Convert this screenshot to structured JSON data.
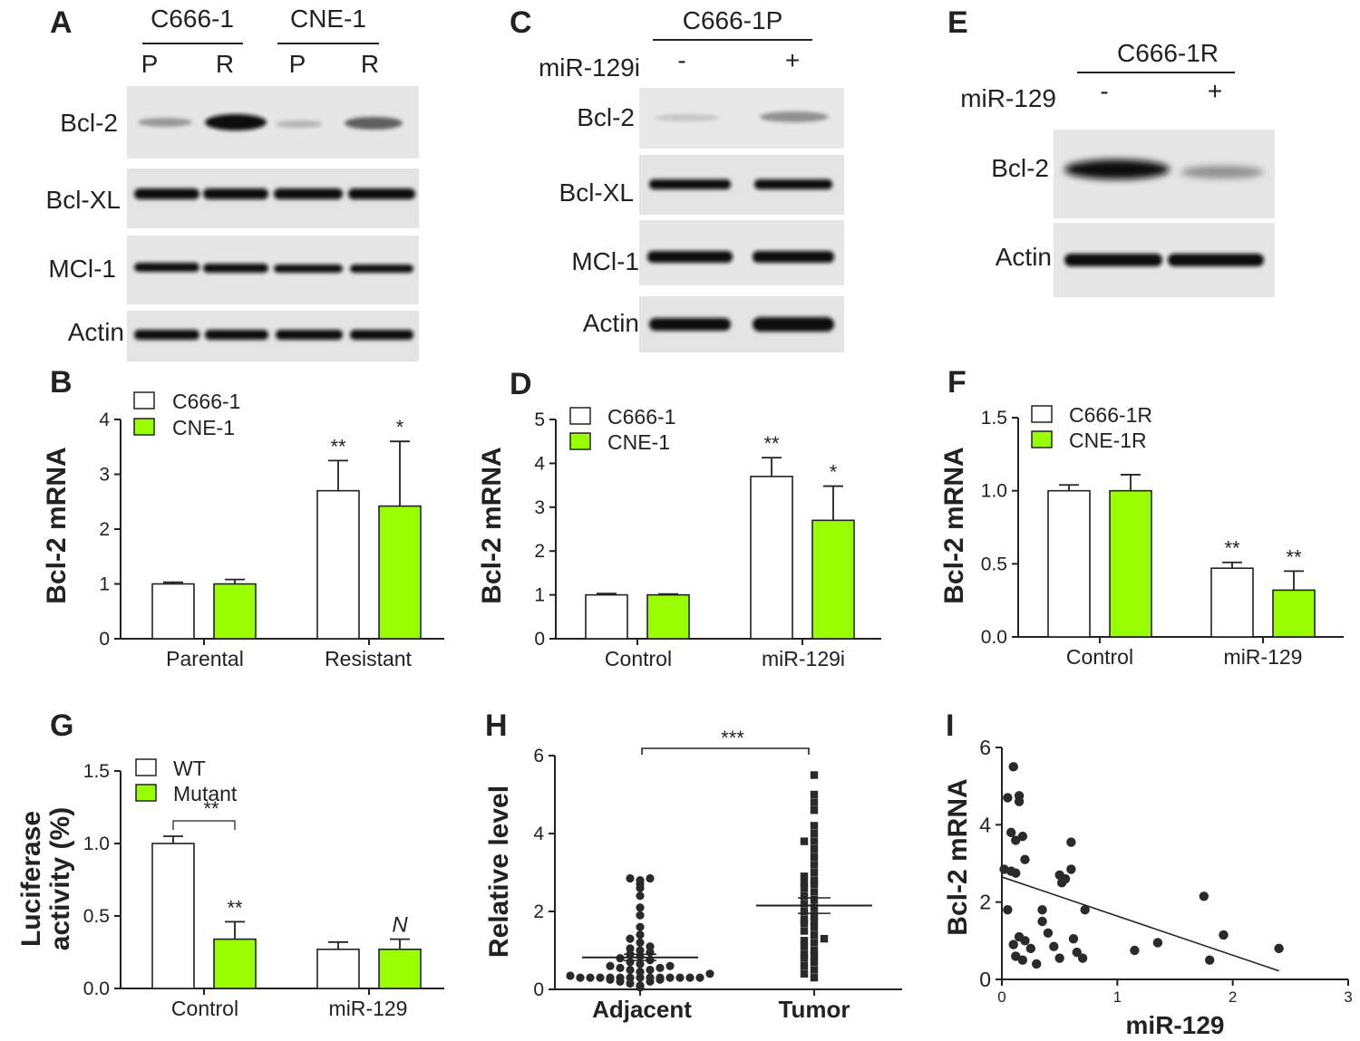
{
  "panels": {
    "A": {
      "letter": "A",
      "groups": [
        {
          "label": "C666-1",
          "lanes": [
            "P",
            "R"
          ]
        },
        {
          "label": "CNE-1",
          "lanes": [
            "P",
            "R"
          ]
        }
      ],
      "rows": [
        "Bcl-2",
        "Bcl-XL",
        "MCl-1",
        "Actin"
      ]
    },
    "C": {
      "letter": "C",
      "group": "C666-1P",
      "treatment": "miR-129i",
      "lanes": [
        "-",
        "+"
      ],
      "rows": [
        "Bcl-2",
        "Bcl-XL",
        "MCl-1",
        "Actin"
      ]
    },
    "E": {
      "letter": "E",
      "group": "C666-1R",
      "treatment": "miR-129",
      "lanes": [
        "-",
        "+"
      ],
      "rows": [
        "Bcl-2",
        "Actin"
      ]
    },
    "B": {
      "letter": "B"
    },
    "D": {
      "letter": "D"
    },
    "F": {
      "letter": "F"
    },
    "G": {
      "letter": "G"
    },
    "H": {
      "letter": "H"
    },
    "I": {
      "letter": "I"
    }
  },
  "colors": {
    "white_bar": "#ffffff",
    "green_bar": "#99ff00",
    "axis": "#222222",
    "dot": "#2a2a2a"
  },
  "chart_data": [
    {
      "id": "B",
      "type": "bar",
      "ylabel": "Bcl-2 mRNA",
      "ylim": [
        0,
        4
      ],
      "yticks": [
        "0",
        "1",
        "2",
        "3",
        "4"
      ],
      "categories": [
        "Parental",
        "Resistant"
      ],
      "series": [
        {
          "name": "C666-1",
          "color": "#ffffff",
          "values": [
            1.0,
            2.7
          ],
          "errors": [
            0.03,
            0.55
          ],
          "stars": [
            "",
            "**"
          ]
        },
        {
          "name": "CNE-1",
          "color": "#99ff00",
          "values": [
            1.0,
            2.42
          ],
          "errors": [
            0.08,
            1.18
          ],
          "stars": [
            "",
            "*"
          ]
        }
      ]
    },
    {
      "id": "D",
      "type": "bar",
      "ylabel": "Bcl-2 mRNA",
      "ylim": [
        0,
        5
      ],
      "yticks": [
        "0",
        "1",
        "2",
        "3",
        "4",
        "5"
      ],
      "categories": [
        "Control",
        "miR-129i"
      ],
      "series": [
        {
          "name": "C666-1",
          "color": "#ffffff",
          "values": [
            1.0,
            3.7
          ],
          "errors": [
            0.03,
            0.43
          ],
          "stars": [
            "",
            "**"
          ]
        },
        {
          "name": "CNE-1",
          "color": "#99ff00",
          "values": [
            1.0,
            2.7
          ],
          "errors": [
            0.02,
            0.78
          ],
          "stars": [
            "",
            "*"
          ]
        }
      ]
    },
    {
      "id": "F",
      "type": "bar",
      "ylabel": "Bcl-2 mRNA",
      "ylim": [
        0,
        1.5
      ],
      "yticks": [
        "0.0",
        "0.5",
        "1.0",
        "1.5"
      ],
      "categories": [
        "Control",
        "miR-129"
      ],
      "series": [
        {
          "name": "C666-1R",
          "color": "#ffffff",
          "values": [
            1.0,
            0.47
          ],
          "errors": [
            0.04,
            0.04
          ],
          "stars": [
            "",
            "**"
          ]
        },
        {
          "name": "CNE-1R",
          "color": "#99ff00",
          "values": [
            1.0,
            0.32
          ],
          "errors": [
            0.11,
            0.13
          ],
          "stars": [
            "",
            "**"
          ]
        }
      ]
    },
    {
      "id": "G",
      "type": "bar",
      "ylabel": [
        "Luciferase",
        "activity (%)"
      ],
      "ylim": [
        0,
        1.5
      ],
      "yticks": [
        "0.0",
        "0.5",
        "1.0",
        "1.5"
      ],
      "categories": [
        "Control",
        "miR-129"
      ],
      "series": [
        {
          "name": "WT",
          "color": "#ffffff",
          "values": [
            1.0,
            0.27
          ],
          "errors": [
            0.05,
            0.05
          ],
          "stars": [
            "",
            ""
          ]
        },
        {
          "name": "Mutant",
          "color": "#99ff00",
          "values": [
            0.34,
            0.27
          ],
          "errors": [
            0.12,
            0.07
          ],
          "stars": [
            "**",
            "N"
          ]
        }
      ],
      "bracket": {
        "label": "**",
        "from": [
          0,
          0
        ],
        "to": [
          1,
          0
        ]
      }
    },
    {
      "id": "H",
      "type": "scatter",
      "ylabel": "Relative level",
      "ylim": [
        0,
        6
      ],
      "yticks": [
        "0",
        "2",
        "4",
        "6"
      ],
      "categories": [
        "Adjacent",
        "Tumor"
      ],
      "means": [
        0.82,
        2.15
      ],
      "sem": [
        0.08,
        0.2
      ],
      "bracket": {
        "label": "***"
      },
      "points": [
        [
          0.05,
          0.1,
          0.15,
          0.2,
          0.2,
          0.25,
          0.25,
          0.3,
          0.3,
          0.3,
          0.3,
          0.3,
          0.3,
          0.3,
          0.3,
          0.3,
          0.3,
          0.3,
          0.3,
          0.3,
          0.35,
          0.4,
          0.45,
          0.5,
          0.5,
          0.55,
          0.55,
          0.6,
          0.6,
          0.65,
          0.7,
          0.75,
          0.8,
          0.85,
          0.9,
          0.95,
          1.0,
          1.05,
          1.1,
          1.2,
          1.3,
          1.4,
          1.6,
          1.9,
          2.1,
          2.4,
          2.6,
          2.7,
          2.8,
          2.85,
          2.85
        ],
        [
          0.3,
          0.4,
          0.5,
          0.6,
          0.7,
          0.8,
          0.85,
          0.9,
          1.0,
          1.1,
          1.2,
          1.25,
          1.3,
          1.4,
          1.5,
          1.6,
          1.7,
          1.75,
          1.8,
          1.9,
          2.0,
          2.1,
          2.2,
          2.3,
          2.4,
          2.5,
          2.6,
          2.7,
          2.75,
          2.8,
          2.9,
          3.0,
          3.2,
          3.4,
          3.6,
          3.8,
          3.8,
          4.0,
          4.2,
          4.6,
          4.8,
          5.0,
          5.5
        ]
      ]
    },
    {
      "id": "I",
      "type": "scatter",
      "xlabel": "miR-129",
      "ylabel": "Bcl-2 mRNA",
      "xlim": [
        0,
        3
      ],
      "ylim": [
        0,
        6
      ],
      "xticks": [
        "0",
        "1",
        "2",
        "3"
      ],
      "yticks": [
        "0",
        "2",
        "4",
        "6"
      ],
      "points": [
        [
          0.02,
          2.85
        ],
        [
          0.05,
          4.7
        ],
        [
          0.08,
          3.8
        ],
        [
          0.08,
          2.8
        ],
        [
          0.1,
          5.5
        ],
        [
          0.12,
          2.75
        ],
        [
          0.12,
          3.6
        ],
        [
          0.15,
          4.6
        ],
        [
          0.15,
          4.75
        ],
        [
          0.18,
          3.7
        ],
        [
          0.2,
          3.1
        ],
        [
          0.05,
          1.8
        ],
        [
          0.1,
          0.9
        ],
        [
          0.15,
          1.1
        ],
        [
          0.2,
          1.0
        ],
        [
          0.25,
          0.8
        ],
        [
          0.12,
          0.6
        ],
        [
          0.18,
          0.5
        ],
        [
          0.3,
          0.4
        ],
        [
          0.35,
          1.5
        ],
        [
          0.35,
          1.8
        ],
        [
          0.4,
          1.2
        ],
        [
          0.45,
          0.85
        ],
        [
          0.5,
          2.7
        ],
        [
          0.52,
          2.5
        ],
        [
          0.55,
          2.6
        ],
        [
          0.6,
          3.55
        ],
        [
          0.6,
          2.85
        ],
        [
          0.62,
          1.05
        ],
        [
          0.65,
          0.7
        ],
        [
          0.5,
          0.55
        ],
        [
          0.72,
          1.8
        ],
        [
          0.7,
          0.55
        ],
        [
          1.15,
          0.75
        ],
        [
          1.35,
          0.95
        ],
        [
          1.75,
          2.15
        ],
        [
          1.8,
          0.5
        ],
        [
          1.92,
          1.15
        ],
        [
          2.4,
          0.8
        ]
      ],
      "fit": [
        [
          0.0,
          2.65
        ],
        [
          2.4,
          0.22
        ]
      ]
    }
  ]
}
